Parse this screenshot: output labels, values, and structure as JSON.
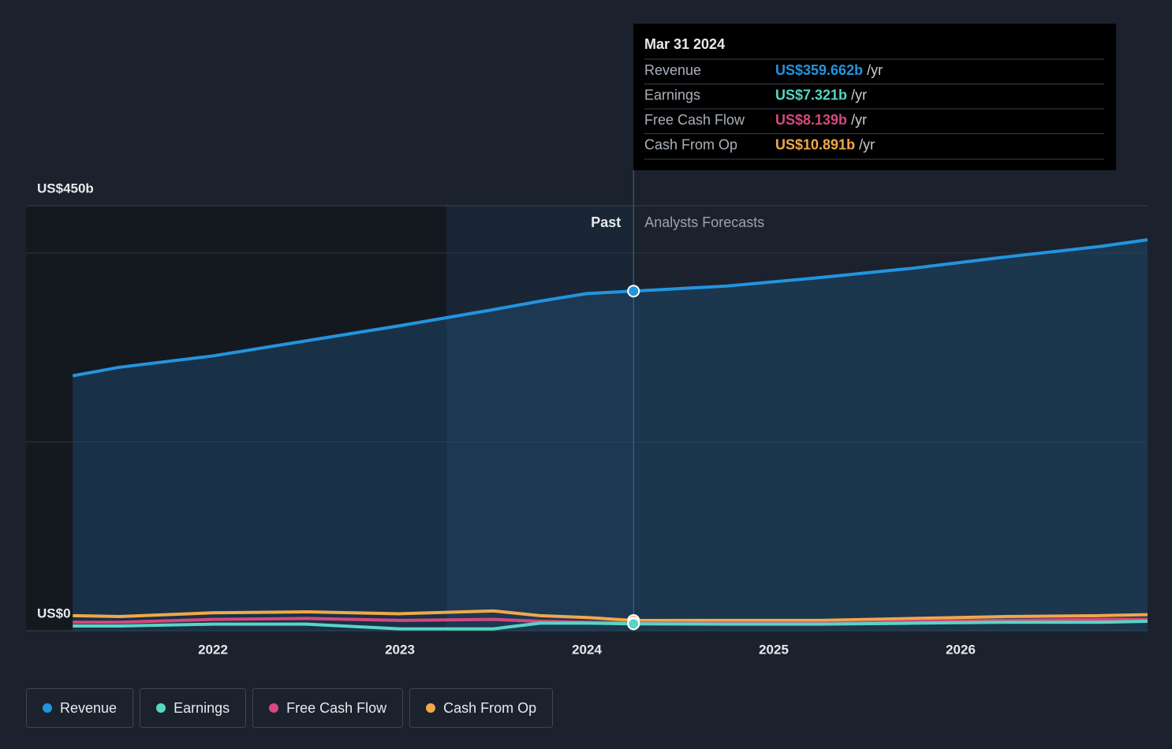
{
  "chart_data": {
    "type": "line",
    "x": [
      2021.25,
      2021.5,
      2022.0,
      2022.5,
      2023.0,
      2023.5,
      2023.75,
      2024.0,
      2024.25,
      2024.75,
      2025.25,
      2025.75,
      2026.25,
      2026.75,
      2027.0
    ],
    "series": [
      {
        "name": "Revenue",
        "color": "#2394df",
        "values": [
          270,
          279,
          291,
          307,
          323,
          340,
          349,
          357,
          359.662,
          365,
          374,
          384,
          396,
          407,
          414
        ]
      },
      {
        "name": "Earnings",
        "color": "#58d6c3",
        "values": [
          5,
          5,
          7,
          7,
          2,
          2,
          8,
          8,
          7.321,
          7,
          7,
          8,
          9,
          9,
          10
        ]
      },
      {
        "name": "Free Cash Flow",
        "color": "#d6487e",
        "values": [
          9,
          9,
          12,
          13,
          11,
          12,
          10,
          9,
          8.139,
          8,
          8,
          10,
          11,
          12,
          12
        ]
      },
      {
        "name": "Cash From Op",
        "color": "#f0a84a",
        "values": [
          16,
          15,
          19,
          20,
          18,
          21,
          16,
          14,
          10.891,
          11,
          11,
          13,
          15,
          16,
          17
        ]
      }
    ],
    "xlim": [
      2021,
      2027
    ],
    "xticks": [
      2022,
      2023,
      2024,
      2025,
      2026
    ],
    "ylim": [
      0,
      450
    ],
    "yticks": [
      {
        "value": 0,
        "label": "US$0"
      },
      {
        "value": 450,
        "label": "US$450b"
      }
    ],
    "grid_values": [
      200,
      400
    ],
    "past_end": 2024.25,
    "highlight_start": 2023.25,
    "annotations": {
      "past": "Past",
      "forecast": "Analysts Forecasts"
    },
    "tooltip": {
      "title": "Mar 31 2024",
      "index": 8,
      "value_labels": [
        "US$359.662b",
        "US$7.321b",
        "US$8.139b",
        "US$10.891b"
      ],
      "unit": "/yr"
    }
  }
}
